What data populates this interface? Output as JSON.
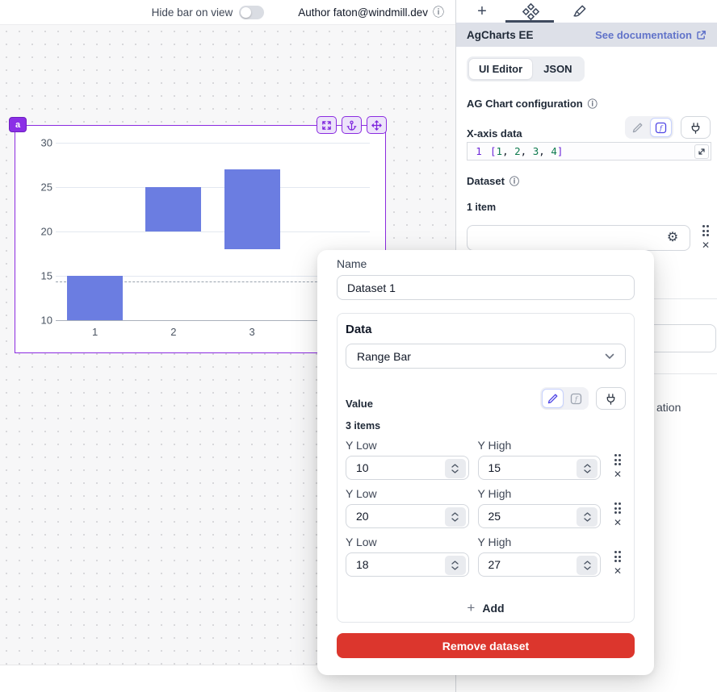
{
  "topbar": {
    "hide_bar_label": "Hide bar on view",
    "author_label": "Author faton@windmill.dev"
  },
  "chart": {
    "badge": "a"
  },
  "chart_data": {
    "type": "bar",
    "subtype": "range-bar",
    "x": [
      "1",
      "2",
      "3",
      "4"
    ],
    "series": [
      {
        "name": "Dataset 1",
        "values": [
          {
            "low": 10,
            "high": 15
          },
          {
            "low": 20,
            "high": 25
          },
          {
            "low": 18,
            "high": 27
          }
        ]
      }
    ],
    "yticks": [
      10,
      15,
      20,
      25,
      30
    ],
    "ylim": [
      10,
      30
    ],
    "bar_color": "#6b7de1",
    "guide_y": 14.4,
    "grid": true,
    "legend": false
  },
  "panel": {
    "title": "AgCharts EE",
    "doc_link": "See documentation",
    "editor_tabs": [
      "UI Editor",
      "JSON"
    ],
    "config_label": "AG Chart configuration",
    "xaxis_label": "X-axis data",
    "line_number": "1",
    "code_tokens": [
      {
        "t": "[",
        "c": "tok-bracket"
      },
      {
        "t": "1",
        "c": "tok-num"
      },
      {
        "t": ", ",
        "c": "tok-plain"
      },
      {
        "t": "2",
        "c": "tok-num"
      },
      {
        "t": ", ",
        "c": "tok-plain"
      },
      {
        "t": "3",
        "c": "tok-num"
      },
      {
        "t": ", ",
        "c": "tok-plain"
      },
      {
        "t": "4",
        "c": "tok-num"
      },
      {
        "t": "]",
        "c": "tok-bracket"
      }
    ],
    "dataset_label": "Dataset",
    "items_count": "1 item",
    "fragment_text": "ation",
    "accent_color": "#6173c9"
  },
  "modal": {
    "name_label": "Name",
    "name_value": "Dataset 1",
    "data_label": "Data",
    "data_value": "Range Bar",
    "value_label": "Value",
    "items_count": "3 items",
    "rows": [
      {
        "low_label": "Y Low",
        "low": "10",
        "high_label": "Y High",
        "high": "15"
      },
      {
        "low_label": "Y Low",
        "low": "20",
        "high_label": "Y High",
        "high": "25"
      },
      {
        "low_label": "Y Low",
        "low": "18",
        "high_label": "Y High",
        "high": "27"
      }
    ],
    "add_label": "Add",
    "remove_label": "Remove dataset",
    "remove_color": "#dc362d"
  }
}
